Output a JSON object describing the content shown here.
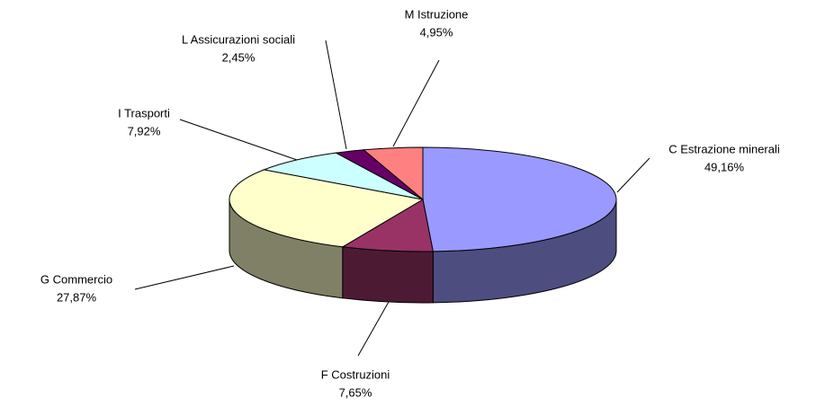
{
  "chart_data": {
    "type": "pie",
    "categories": [
      "C Estrazione minerali",
      "F Costruzioni",
      "G Commercio",
      "I Trasporti",
      "L Assicurazioni sociali",
      "M Istruzione"
    ],
    "values": [
      49.16,
      7.65,
      27.87,
      7.92,
      2.45,
      4.95
    ],
    "value_labels": [
      "49,16%",
      "7,65%",
      "27,87%",
      "7,92%",
      "2,45%",
      "4,95%"
    ],
    "colors": [
      "#9999ff",
      "#993366",
      "#ffffcc",
      "#ccffff",
      "#660066",
      "#ff8080"
    ]
  }
}
